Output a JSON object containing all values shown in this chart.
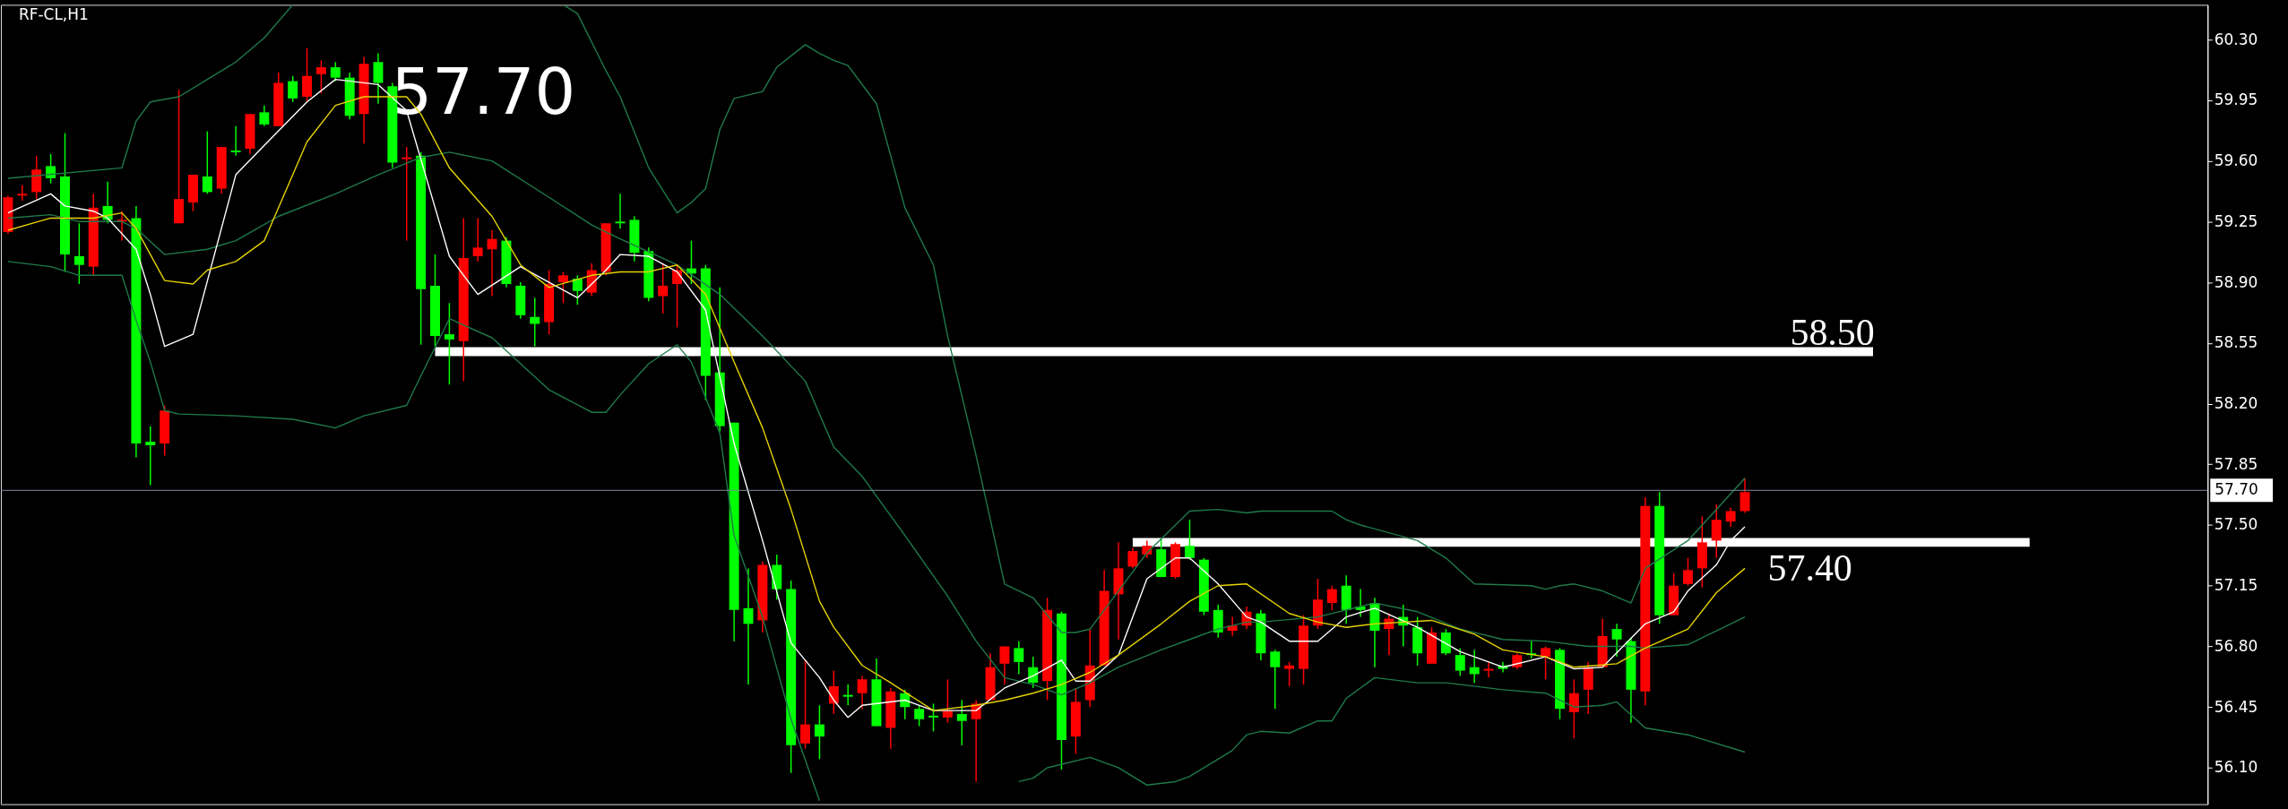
{
  "chart_data": {
    "type": "candlestick",
    "title": "RF-CL,H1",
    "categories": [
      null,
      null,
      null,
      null,
      null,
      null,
      null,
      null,
      null,
      null,
      null,
      null,
      null,
      null,
      null,
      null,
      null,
      null,
      null,
      null,
      null,
      null,
      null,
      null,
      null,
      null,
      null,
      null,
      null,
      null,
      null,
      null,
      null,
      null,
      null,
      null,
      null,
      null,
      null,
      null,
      null,
      null,
      null,
      null,
      null,
      null,
      null,
      null,
      null,
      null,
      null,
      null,
      null,
      null,
      null,
      null,
      null,
      null,
      null,
      null,
      null,
      null,
      null,
      null,
      null,
      null,
      null,
      null,
      null,
      null,
      null,
      null,
      null,
      null,
      null,
      null,
      null,
      null,
      null,
      null,
      null,
      null,
      null,
      null,
      null,
      null,
      null,
      null,
      null,
      null,
      null,
      null,
      null,
      null,
      null,
      null,
      null,
      null,
      null,
      null,
      null,
      null,
      null,
      null,
      null,
      null,
      null,
      null,
      null,
      null,
      null,
      null,
      null,
      null,
      null,
      null,
      null,
      null,
      null,
      null,
      null,
      null,
      null,
      null,
      null,
      null,
      null,
      null,
      null,
      null,
      null,
      null,
      null,
      null,
      null,
      null,
      null,
      null,
      null,
      null,
      null,
      null,
      null,
      null,
      null,
      null,
      null,
      null,
      null,
      null,
      null,
      null,
      null,
      null,
      null
    ],
    "ohlc": [
      [
        59.19,
        59.4,
        59.18,
        59.39
      ],
      [
        59.4,
        59.46,
        59.37,
        59.41
      ],
      [
        59.42,
        59.63,
        59.38,
        59.55
      ],
      [
        59.57,
        59.64,
        59.47,
        59.5
      ],
      [
        59.51,
        59.76,
        58.96,
        59.06
      ],
      [
        59.05,
        59.24,
        58.89,
        59.0
      ],
      [
        58.99,
        59.41,
        58.94,
        59.33
      ],
      [
        59.34,
        59.48,
        59.24,
        59.26
      ],
      [
        59.25,
        59.31,
        59.14,
        59.26
      ],
      [
        59.27,
        59.34,
        57.89,
        57.97
      ],
      [
        57.98,
        58.07,
        57.73,
        57.96
      ],
      [
        57.97,
        58.19,
        57.9,
        58.16
      ],
      [
        59.24,
        60.01,
        59.24,
        59.38
      ],
      [
        59.36,
        59.52,
        59.31,
        59.52
      ],
      [
        59.51,
        59.77,
        59.41,
        59.42
      ],
      [
        59.44,
        59.68,
        59.41,
        59.68
      ],
      [
        59.66,
        59.8,
        59.63,
        59.65
      ],
      [
        59.67,
        59.87,
        59.64,
        59.87
      ],
      [
        59.88,
        59.92,
        59.8,
        59.81
      ],
      [
        59.8,
        60.11,
        59.8,
        60.05
      ],
      [
        60.06,
        60.09,
        59.94,
        59.96
      ],
      [
        59.97,
        60.25,
        59.94,
        60.09
      ],
      [
        60.1,
        60.18,
        59.99,
        60.14
      ],
      [
        60.14,
        60.17,
        60.06,
        60.08
      ],
      [
        60.08,
        60.11,
        59.84,
        59.86
      ],
      [
        59.87,
        60.2,
        59.7,
        60.16
      ],
      [
        60.17,
        60.22,
        59.93,
        60.05
      ],
      [
        60.03,
        60.05,
        59.56,
        59.59
      ],
      [
        59.61,
        59.68,
        59.14,
        59.62
      ],
      [
        59.63,
        59.65,
        58.54,
        58.86
      ],
      [
        58.88,
        59.06,
        58.53,
        58.59
      ],
      [
        58.6,
        58.78,
        58.31,
        58.57
      ],
      [
        58.56,
        59.27,
        58.33,
        59.04
      ],
      [
        59.05,
        59.27,
        59.02,
        59.1
      ],
      [
        59.09,
        59.2,
        58.82,
        59.15
      ],
      [
        59.14,
        59.16,
        58.87,
        58.89
      ],
      [
        58.88,
        58.9,
        58.69,
        58.71
      ],
      [
        58.7,
        58.81,
        58.53,
        58.66
      ],
      [
        58.67,
        58.97,
        58.6,
        58.89
      ],
      [
        58.9,
        58.96,
        58.78,
        58.94
      ],
      [
        58.92,
        58.94,
        58.77,
        58.85
      ],
      [
        58.84,
        59.01,
        58.82,
        58.97
      ],
      [
        58.96,
        59.24,
        58.94,
        59.24
      ],
      [
        59.25,
        59.41,
        59.21,
        59.24
      ],
      [
        59.26,
        59.28,
        59.02,
        59.07
      ],
      [
        59.08,
        59.1,
        58.79,
        58.81
      ],
      [
        58.82,
        59.01,
        58.72,
        58.88
      ],
      [
        58.89,
        59.0,
        58.64,
        58.97
      ],
      [
        58.98,
        59.14,
        58.89,
        58.95
      ],
      [
        58.98,
        59.0,
        58.22,
        58.36
      ],
      [
        58.38,
        58.87,
        58.04,
        58.07
      ],
      [
        58.09,
        58.09,
        56.83,
        57.01
      ],
      [
        57.02,
        57.25,
        56.58,
        56.93
      ],
      [
        56.95,
        57.29,
        56.88,
        57.27
      ],
      [
        57.27,
        57.33,
        57.07,
        57.13
      ],
      [
        57.13,
        57.18,
        56.07,
        56.23
      ],
      [
        56.24,
        56.72,
        56.21,
        56.35
      ],
      [
        56.35,
        56.46,
        56.15,
        56.28
      ],
      [
        56.47,
        56.66,
        56.41,
        56.57
      ],
      [
        56.52,
        56.58,
        56.46,
        56.51
      ],
      [
        56.53,
        56.63,
        56.44,
        56.61
      ],
      [
        56.61,
        56.73,
        56.34,
        56.34
      ],
      [
        56.33,
        56.56,
        56.21,
        56.54
      ],
      [
        56.53,
        56.55,
        56.38,
        56.45
      ],
      [
        56.44,
        56.46,
        56.34,
        56.38
      ],
      [
        56.4,
        56.47,
        56.31,
        56.39
      ],
      [
        56.39,
        56.61,
        56.36,
        56.43
      ],
      [
        56.41,
        56.49,
        56.23,
        56.37
      ],
      [
        56.38,
        56.49,
        56.02,
        56.47
      ],
      [
        56.49,
        56.76,
        56.49,
        56.68
      ],
      [
        56.7,
        56.8,
        56.58,
        56.8
      ],
      [
        56.79,
        56.83,
        56.64,
        56.71
      ],
      [
        56.68,
        56.74,
        56.56,
        56.59
      ],
      [
        56.6,
        57.08,
        56.49,
        57.01
      ],
      [
        56.99,
        57.0,
        56.09,
        56.26
      ],
      [
        56.28,
        56.56,
        56.18,
        56.48
      ],
      [
        56.49,
        56.9,
        56.45,
        56.69
      ],
      [
        56.69,
        57.24,
        56.69,
        57.12
      ],
      [
        57.1,
        57.4,
        56.84,
        57.25
      ],
      [
        57.26,
        57.37,
        57.25,
        57.35
      ],
      [
        57.33,
        57.41,
        57.31,
        57.38
      ],
      [
        57.36,
        57.42,
        57.2,
        57.2
      ],
      [
        57.2,
        57.4,
        57.19,
        57.39
      ],
      [
        57.38,
        57.53,
        57.3,
        57.31
      ],
      [
        57.3,
        57.31,
        56.98,
        57.0
      ],
      [
        57.01,
        57.04,
        56.85,
        56.88
      ],
      [
        56.89,
        56.97,
        56.86,
        56.92
      ],
      [
        56.92,
        57.03,
        56.9,
        57.0
      ],
      [
        56.99,
        57.01,
        56.72,
        56.76
      ],
      [
        56.77,
        56.78,
        56.44,
        56.68
      ],
      [
        56.67,
        56.71,
        56.57,
        56.69
      ],
      [
        56.67,
        56.98,
        56.58,
        56.92
      ],
      [
        56.92,
        57.19,
        56.9,
        57.07
      ],
      [
        57.05,
        57.15,
        57.01,
        57.13
      ],
      [
        57.15,
        57.21,
        56.93,
        57.01
      ],
      [
        57.03,
        57.13,
        56.97,
        57.01
      ],
      [
        57.05,
        57.08,
        56.68,
        56.89
      ],
      [
        56.9,
        56.99,
        56.75,
        56.96
      ],
      [
        56.97,
        57.04,
        56.8,
        56.92
      ],
      [
        56.91,
        56.97,
        56.69,
        56.76
      ],
      [
        56.7,
        56.91,
        56.7,
        56.88
      ],
      [
        56.88,
        56.9,
        56.75,
        56.76
      ],
      [
        56.75,
        56.79,
        56.63,
        56.66
      ],
      [
        56.68,
        56.78,
        56.59,
        56.64
      ],
      [
        56.66,
        56.71,
        56.62,
        56.67
      ],
      [
        56.69,
        56.71,
        56.65,
        56.67
      ],
      [
        56.68,
        56.76,
        56.67,
        56.75
      ],
      [
        56.76,
        56.83,
        56.73,
        56.75
      ],
      [
        56.74,
        56.8,
        56.61,
        56.79
      ],
      [
        56.78,
        56.79,
        56.38,
        56.44
      ],
      [
        56.42,
        56.61,
        56.27,
        56.53
      ],
      [
        56.55,
        56.71,
        56.41,
        56.68
      ],
      [
        56.68,
        56.96,
        56.68,
        56.86
      ],
      [
        56.9,
        56.93,
        56.74,
        56.84
      ],
      [
        56.83,
        56.85,
        56.36,
        56.55
      ],
      [
        56.54,
        57.66,
        56.46,
        57.61
      ],
      [
        57.61,
        57.69,
        56.93,
        56.98
      ],
      [
        56.98,
        57.22,
        56.98,
        57.15
      ],
      [
        57.16,
        57.31,
        57.15,
        57.24
      ],
      [
        57.25,
        57.55,
        57.14,
        57.4
      ],
      [
        57.41,
        57.62,
        57.31,
        57.53
      ],
      [
        57.52,
        57.6,
        57.49,
        57.58
      ],
      [
        57.58,
        57.77,
        57.57,
        57.69
      ],
      null,
      null,
      null,
      null,
      null,
      null,
      null,
      null,
      null,
      null,
      null,
      null,
      null,
      null,
      null,
      null,
      null,
      null,
      null,
      null,
      null,
      null,
      null,
      null,
      null,
      null,
      null,
      null,
      null,
      null,
      null,
      null
    ],
    "colors": [
      "#ff0000",
      "#ff0000",
      "#ff0000",
      "#00ff00",
      "#00ff00",
      "#00ff00",
      "#ff0000",
      "#00ff00",
      "#ff0000",
      "#00ff00",
      "#00ff00",
      "#ff0000",
      "#ff0000",
      "#ff0000",
      "#00ff00",
      "#ff0000",
      "#00ff00",
      "#ff0000",
      "#00ff00",
      "#ff0000",
      "#00ff00",
      "#ff0000",
      "#ff0000",
      "#00ff00",
      "#00ff00",
      "#ff0000",
      "#00ff00",
      "#00ff00",
      "#ff0000",
      "#00ff00",
      "#00ff00",
      "#00ff00",
      "#ff0000",
      "#ff0000",
      "#ff0000",
      "#00ff00",
      "#00ff00",
      "#00ff00",
      "#ff0000",
      "#ff0000",
      "#00ff00",
      "#ff0000",
      "#ff0000",
      "#00ff00",
      "#00ff00",
      "#00ff00",
      "#ff0000",
      "#ff0000",
      "#00ff00",
      "#00ff00",
      "#00ff00",
      "#00ff00",
      "#00ff00",
      "#ff0000",
      "#00ff00",
      "#00ff00",
      "#ff0000",
      "#00ff00",
      "#ff0000",
      "#00ff00",
      "#ff0000",
      "#00ff00",
      "#ff0000",
      "#00ff00",
      "#00ff00",
      "#00ff00",
      "#ff0000",
      "#00ff00",
      "#ff0000",
      "#ff0000",
      "#ff0000",
      "#00ff00",
      "#00ff00",
      "#ff0000",
      "#00ff00",
      "#ff0000",
      "#ff0000",
      "#ff0000",
      "#ff0000",
      "#ff0000",
      "#ff0000",
      "#00ff00",
      "#ff0000",
      "#00ff00",
      "#00ff00",
      "#00ff00",
      "#ff0000",
      "#ff0000",
      "#00ff00",
      "#00ff00",
      "#ff0000",
      "#ff0000",
      "#ff0000",
      "#ff0000",
      "#00ff00",
      "#00ff00",
      "#00ff00",
      "#ff0000",
      "#00ff00",
      "#00ff00",
      "#ff0000",
      "#00ff00",
      "#00ff00",
      "#00ff00",
      "#ff0000",
      "#00ff00",
      "#ff0000",
      "#00ff00",
      "#ff0000",
      "#00ff00",
      "#ff0000",
      "#ff0000",
      "#ff0000",
      "#00ff00",
      "#00ff00",
      "#ff0000",
      "#00ff00",
      "#ff0000",
      "#ff0000",
      "#ff0000",
      "#ff0000",
      "#ff0000",
      "#ff0000",
      null,
      null,
      null,
      null,
      null,
      null,
      null,
      null,
      null,
      null,
      null,
      null,
      null,
      null,
      null,
      null,
      null,
      null,
      null,
      null,
      null,
      null,
      null,
      null,
      null,
      null,
      null,
      null,
      null,
      null,
      null,
      null
    ],
    "series": [
      {
        "type": "line",
        "color": "#1f7a4a",
        "values": [
          59.5,
          null,
          null,
          null,
          null,
          null,
          null,
          null,
          59.56,
          59.83,
          59.94,
          null,
          59.97,
          null,
          null,
          null,
          60.17,
          null,
          60.31,
          null,
          60.5,
          null,
          null,
          null,
          null,
          null,
          null,
          null,
          null,
          null,
          null,
          null,
          null,
          null,
          null,
          null,
          null,
          null,
          null,
          null,
          null,
          null,
          null,
          null,
          null,
          null,
          null,
          null,
          null,
          null,
          null,
          null,
          null,
          null,
          null,
          null,
          null,
          null,
          null,
          null,
          null,
          null,
          null,
          null,
          null,
          null,
          null,
          null,
          null,
          null,
          null,
          null,
          null,
          null,
          null,
          null,
          null,
          null,
          null,
          null,
          null,
          null,
          null,
          null,
          null,
          null,
          null,
          null,
          null,
          null,
          null,
          null,
          null,
          null,
          null,
          null,
          null,
          null,
          null,
          null,
          null,
          null,
          null,
          null,
          null,
          null,
          null,
          null,
          null,
          null,
          null,
          null,
          null,
          null,
          null,
          null,
          null,
          null,
          null,
          null,
          null,
          null,
          null,
          null,
          null,
          null,
          null,
          null,
          null,
          null,
          null,
          null,
          null,
          null,
          null,
          null,
          null,
          null,
          null,
          null,
          null,
          null,
          null,
          null,
          null,
          null,
          null,
          null,
          null,
          null,
          null,
          null,
          null,
          null,
          null
        ]
      },
      {
        "type": "line",
        "color": "#1f7a4a",
        "values": [
          null,
          null,
          null,
          null,
          null,
          null,
          null,
          null,
          null,
          null,
          null,
          null,
          null,
          null,
          null,
          null,
          null,
          null,
          null,
          null,
          null,
          null,
          null,
          null,
          null,
          null,
          null,
          null,
          null,
          null,
          null,
          null,
          null,
          null,
          null,
          null,
          null,
          null,
          null,
          60.5,
          60.45,
          null,
          60.12,
          59.97,
          null,
          59.56,
          null,
          59.3,
          59.36,
          59.44,
          59.78,
          59.96,
          null,
          60.0,
          60.14,
          null,
          60.27,
          60.22,
          60.18,
          60.15,
          null,
          59.93,
          null,
          59.33,
          null,
          59.0,
          58.59,
          null,
          57.9,
          null,
          57.16,
          null,
          57.08,
          null,
          56.88,
          56.88,
          56.9,
          null,
          57.12,
          null,
          57.34,
          null,
          57.5,
          57.58,
          null,
          57.59,
          null,
          57.57,
          57.58,
          null,
          null,
          null,
          null,
          57.58,
          57.53,
          57.5,
          null,
          null,
          null,
          57.41,
          null,
          57.31,
          null,
          57.16,
          null,
          null,
          null,
          57.15,
          57.13,
          57.15,
          57.16,
          null,
          57.12,
          null,
          57.05,
          57.25,
          null,
          null,
          57.41,
          null,
          null,
          null,
          57.77,
          null,
          null,
          null,
          null,
          null,
          null,
          null,
          null,
          null,
          null,
          null,
          null,
          null,
          null,
          null,
          null,
          null,
          null,
          null,
          null,
          null,
          null,
          null,
          null,
          null,
          null,
          null,
          null,
          null,
          null,
          null,
          null
        ]
      },
      {
        "type": "line",
        "color": "#1f7a4a",
        "values": [
          59.27,
          null,
          null,
          59.29,
          null,
          59.25,
          null,
          null,
          59.25,
          59.21,
          null,
          59.06,
          null,
          null,
          59.09,
          null,
          59.14,
          null,
          null,
          59.28,
          null,
          null,
          null,
          59.41,
          null,
          null,
          59.52,
          null,
          null,
          59.62,
          null,
          59.65,
          null,
          null,
          59.6,
          null,
          null,
          null,
          59.39,
          null,
          null,
          59.23,
          null,
          59.15,
          null,
          null,
          null,
          59.0,
          null,
          null,
          58.83,
          null,
          null,
          58.59,
          null,
          null,
          58.33,
          null,
          57.95,
          null,
          57.78,
          null,
          null,
          57.44,
          null,
          null,
          57.09,
          null,
          56.83,
          null,
          56.62,
          null,
          56.58,
          null,
          56.52,
          null,
          56.59,
          null,
          56.68,
          null,
          null,
          56.78,
          null,
          56.84,
          null,
          56.9,
          null,
          56.94,
          56.94,
          null,
          null,
          null,
          56.97,
          null,
          null,
          null,
          57.05,
          null,
          null,
          57.0,
          null,
          null,
          56.9,
          null,
          null,
          56.84,
          null,
          null,
          56.83,
          null,
          null,
          56.8,
          null,
          null,
          56.8,
          56.79,
          null,
          null,
          56.81,
          null,
          null,
          null,
          56.97,
          null,
          null,
          null,
          null,
          null,
          null,
          null,
          null,
          null,
          null,
          null,
          null,
          null,
          null,
          null,
          null,
          null,
          null,
          null,
          null,
          null,
          null,
          null,
          null,
          null,
          null,
          null,
          null,
          null,
          null,
          null,
          null
        ]
      },
      {
        "type": "line",
        "color": "#1f7a4a",
        "values": [
          59.02,
          null,
          null,
          58.99,
          null,
          58.94,
          null,
          null,
          58.94,
          58.68,
          58.44,
          58.16,
          58.14,
          null,
          null,
          null,
          58.13,
          null,
          null,
          null,
          58.11,
          null,
          null,
          58.06,
          null,
          58.13,
          null,
          null,
          58.19,
          58.36,
          null,
          58.69,
          null,
          null,
          58.58,
          null,
          null,
          null,
          58.28,
          null,
          null,
          58.15,
          58.15,
          58.25,
          null,
          58.43,
          null,
          58.54,
          58.44,
          null,
          58.03,
          57.44,
          null,
          56.97,
          null,
          56.38,
          null,
          55.91,
          null,
          null,
          null,
          null,
          null,
          null,
          null,
          null,
          null,
          null,
          null,
          null,
          null,
          null,
          null,
          null,
          null,
          null,
          null,
          null,
          null,
          null,
          null,
          null,
          null,
          null,
          null,
          null,
          null,
          null,
          null,
          null,
          null,
          null,
          null,
          null,
          null,
          null,
          null,
          null,
          null,
          null,
          null,
          null,
          null,
          null,
          null,
          null,
          null,
          null,
          null,
          null,
          null,
          null,
          null,
          null,
          null,
          null,
          null,
          null,
          null,
          null,
          null,
          null,
          null,
          null,
          null,
          null,
          null,
          null,
          null,
          null,
          null,
          null,
          null,
          null,
          null,
          null,
          null,
          null,
          null,
          null,
          null,
          null,
          null,
          null,
          null,
          null,
          null,
          null,
          null,
          null,
          null,
          null,
          null,
          null,
          null
        ]
      },
      {
        "type": "line",
        "color": "#1f7a4a",
        "values": [
          null,
          null,
          null,
          null,
          null,
          null,
          null,
          null,
          null,
          null,
          null,
          null,
          null,
          null,
          null,
          null,
          null,
          null,
          null,
          null,
          null,
          null,
          null,
          null,
          null,
          null,
          null,
          null,
          null,
          null,
          null,
          null,
          null,
          null,
          null,
          null,
          null,
          null,
          null,
          null,
          null,
          null,
          null,
          null,
          null,
          null,
          null,
          null,
          null,
          null,
          null,
          null,
          null,
          null,
          null,
          null,
          null,
          null,
          null,
          null,
          null,
          null,
          null,
          null,
          null,
          null,
          null,
          null,
          null,
          null,
          null,
          56.02,
          56.04,
          56.1,
          null,
          null,
          56.16,
          null,
          56.1,
          null,
          56.0,
          null,
          56.02,
          56.05,
          null,
          null,
          56.2,
          56.29,
          56.31,
          null,
          56.3,
          null,
          56.37,
          56.37,
          56.5,
          null,
          56.62,
          null,
          null,
          56.59,
          null,
          56.59,
          null,
          null,
          null,
          56.55,
          null,
          null,
          56.53,
          null,
          56.45,
          null,
          56.46,
          56.48,
          null,
          56.33,
          null,
          null,
          56.29,
          null,
          null,
          null,
          56.19,
          null,
          null,
          null,
          null,
          null,
          null,
          null,
          null,
          null,
          null,
          null,
          null,
          null,
          null,
          null,
          null,
          null,
          null,
          null,
          null,
          null,
          null,
          null,
          null,
          null,
          null,
          null,
          null,
          null,
          null,
          null,
          null
        ]
      },
      {
        "type": "line",
        "color": "#ffffff",
        "values": [
          59.3,
          null,
          null,
          59.41,
          59.34,
          null,
          59.31,
          59.27,
          null,
          59.09,
          58.83,
          58.53,
          null,
          58.6,
          null,
          null,
          59.52,
          null,
          59.69,
          null,
          null,
          59.94,
          null,
          60.07,
          null,
          null,
          60.04,
          null,
          59.89,
          null,
          59.33,
          59.05,
          null,
          58.83,
          null,
          null,
          58.99,
          null,
          58.9,
          null,
          58.81,
          null,
          58.97,
          59.06,
          null,
          59.05,
          null,
          58.96,
          null,
          58.74,
          null,
          57.97,
          null,
          57.41,
          null,
          56.82,
          null,
          56.62,
          56.49,
          56.39,
          56.46,
          null,
          null,
          56.49,
          null,
          56.43,
          null,
          null,
          56.43,
          null,
          56.56,
          null,
          56.63,
          null,
          56.72,
          56.6,
          56.6,
          null,
          56.75,
          null,
          57.19,
          null,
          57.31,
          57.31,
          null,
          57.16,
          null,
          56.97,
          56.94,
          null,
          56.83,
          null,
          56.83,
          null,
          56.97,
          null,
          57.02,
          null,
          null,
          56.91,
          null,
          null,
          56.77,
          null,
          null,
          56.68,
          null,
          null,
          56.74,
          null,
          56.67,
          null,
          56.68,
          null,
          null,
          56.93,
          null,
          57.0,
          57.12,
          null,
          57.27,
          57.41,
          57.49,
          null,
          null,
          null,
          null,
          null,
          null,
          null,
          null,
          null,
          null,
          null,
          null,
          null,
          null,
          null,
          null,
          null,
          null,
          null,
          null,
          null,
          null,
          null,
          null,
          null,
          null,
          null,
          null,
          null,
          null,
          null,
          null
        ]
      },
      {
        "type": "line",
        "color": "#e6d200",
        "values": [
          59.2,
          null,
          null,
          59.27,
          null,
          null,
          59.27,
          null,
          59.3,
          59.21,
          null,
          58.91,
          null,
          58.89,
          58.97,
          null,
          59.02,
          null,
          59.14,
          null,
          null,
          59.71,
          null,
          59.92,
          null,
          59.97,
          null,
          null,
          59.97,
          59.87,
          null,
          59.56,
          null,
          null,
          59.28,
          null,
          59.0,
          null,
          58.87,
          null,
          null,
          58.94,
          null,
          58.96,
          null,
          58.96,
          null,
          59.0,
          null,
          58.83,
          null,
          58.44,
          null,
          58.06,
          null,
          57.59,
          null,
          57.06,
          56.91,
          null,
          56.69,
          null,
          56.59,
          null,
          null,
          56.43,
          null,
          null,
          56.46,
          null,
          56.49,
          null,
          56.53,
          null,
          56.58,
          null,
          56.65,
          null,
          56.75,
          null,
          null,
          56.93,
          null,
          57.06,
          null,
          57.15,
          null,
          57.16,
          null,
          null,
          56.99,
          null,
          56.94,
          null,
          56.91,
          null,
          56.93,
          null,
          null,
          null,
          56.95,
          null,
          null,
          56.87,
          null,
          56.78,
          null,
          null,
          56.74,
          null,
          56.68,
          null,
          null,
          56.7,
          null,
          56.79,
          null,
          null,
          56.9,
          null,
          57.11,
          null,
          57.25,
          null,
          null,
          null,
          null,
          null,
          null,
          null,
          null,
          null,
          null,
          null,
          null,
          null,
          null,
          null,
          null,
          null,
          null,
          null,
          null,
          null,
          null,
          null,
          null,
          null,
          null,
          null,
          null,
          null,
          null,
          null,
          null
        ]
      },
      {
        "type": "line",
        "color": "#ffffff",
        "values": [
          null,
          null,
          null,
          null,
          null,
          null,
          null,
          null,
          null,
          null,
          null,
          null,
          null,
          null,
          null,
          null,
          null,
          null,
          null,
          null,
          null,
          null,
          null,
          null,
          null,
          null,
          null,
          null,
          null,
          null,
          58.5,
          null,
          null,
          null,
          null,
          null,
          null,
          null,
          null,
          null,
          null,
          null,
          null,
          null,
          null,
          null,
          null,
          null,
          null,
          null,
          null,
          null,
          null,
          null,
          null,
          null,
          null,
          null,
          null,
          null,
          null,
          null,
          null,
          null,
          null,
          null,
          null,
          null,
          null,
          null,
          null,
          null,
          null,
          null,
          null,
          null,
          null,
          null,
          null,
          null,
          null,
          null,
          null,
          null,
          null,
          null,
          null,
          null,
          null,
          null,
          null,
          null,
          null,
          null,
          null,
          null,
          null,
          null,
          null,
          null,
          null,
          null,
          null,
          null,
          null,
          null,
          null,
          null,
          null,
          null,
          null,
          null,
          null,
          null,
          null,
          null,
          null,
          null,
          null,
          null,
          null,
          null,
          null,
          null,
          null,
          null,
          null,
          null,
          null,
          null,
          null,
          58.5,
          null,
          null,
          null,
          null,
          null,
          null,
          null,
          null,
          null,
          null,
          null,
          null,
          null,
          null,
          null,
          null,
          null,
          null,
          null,
          null,
          null,
          null,
          null
        ]
      },
      {
        "type": "line",
        "color": "#ffffff",
        "values": [
          null,
          null,
          null,
          null,
          null,
          null,
          null,
          null,
          null,
          null,
          null,
          null,
          null,
          null,
          null,
          null,
          null,
          null,
          null,
          null,
          null,
          null,
          null,
          null,
          null,
          null,
          null,
          null,
          null,
          null,
          null,
          null,
          null,
          null,
          null,
          null,
          null,
          null,
          null,
          null,
          null,
          null,
          null,
          null,
          null,
          null,
          null,
          null,
          null,
          null,
          null,
          null,
          null,
          null,
          null,
          null,
          null,
          null,
          null,
          null,
          null,
          null,
          null,
          null,
          null,
          null,
          null,
          null,
          null,
          null,
          null,
          null,
          null,
          null,
          null,
          null,
          null,
          null,
          null,
          57.4,
          null,
          null,
          null,
          null,
          null,
          null,
          null,
          null,
          null,
          null,
          null,
          null,
          null,
          null,
          null,
          null,
          null,
          null,
          null,
          null,
          null,
          null,
          null,
          null,
          null,
          null,
          null,
          null,
          null,
          null,
          null,
          null,
          null,
          null,
          null,
          null,
          null,
          null,
          null,
          null,
          null,
          null,
          null,
          null,
          null,
          null,
          null,
          null,
          null,
          null,
          null,
          null,
          null,
          null,
          null,
          null,
          null,
          null,
          null,
          null,
          null,
          null,
          57.4,
          null,
          null,
          null,
          null,
          null,
          null,
          null,
          null,
          null,
          null,
          null,
          null
        ]
      }
    ],
    "ref_lines": [
      {
        "axis": "y",
        "value": 57.7,
        "label": "57.70",
        "color": "#7f8c9a"
      }
    ],
    "annotations": [
      "57.70",
      "58.50",
      "57.40"
    ],
    "ylim": [
      55.89,
      60.5
    ],
    "yticks": [
      {
        "value": 56.1,
        "label": "56.10"
      },
      {
        "value": 56.45,
        "label": "56.45"
      },
      {
        "value": 56.8,
        "label": "56.80"
      },
      {
        "value": 57.15,
        "label": "57.15"
      },
      {
        "value": 57.5,
        "label": "57.50"
      },
      {
        "value": 57.85,
        "label": "57.85"
      },
      {
        "value": 58.2,
        "label": "58.20"
      },
      {
        "value": 58.55,
        "label": "58.55"
      },
      {
        "value": 58.9,
        "label": "58.90"
      },
      {
        "value": 59.25,
        "label": "59.25"
      },
      {
        "value": 59.6,
        "label": "59.60"
      },
      {
        "value": 59.95,
        "label": "59.95"
      },
      {
        "value": 60.3,
        "label": "60.30"
      }
    ],
    "tick_labels": "y"
  }
}
